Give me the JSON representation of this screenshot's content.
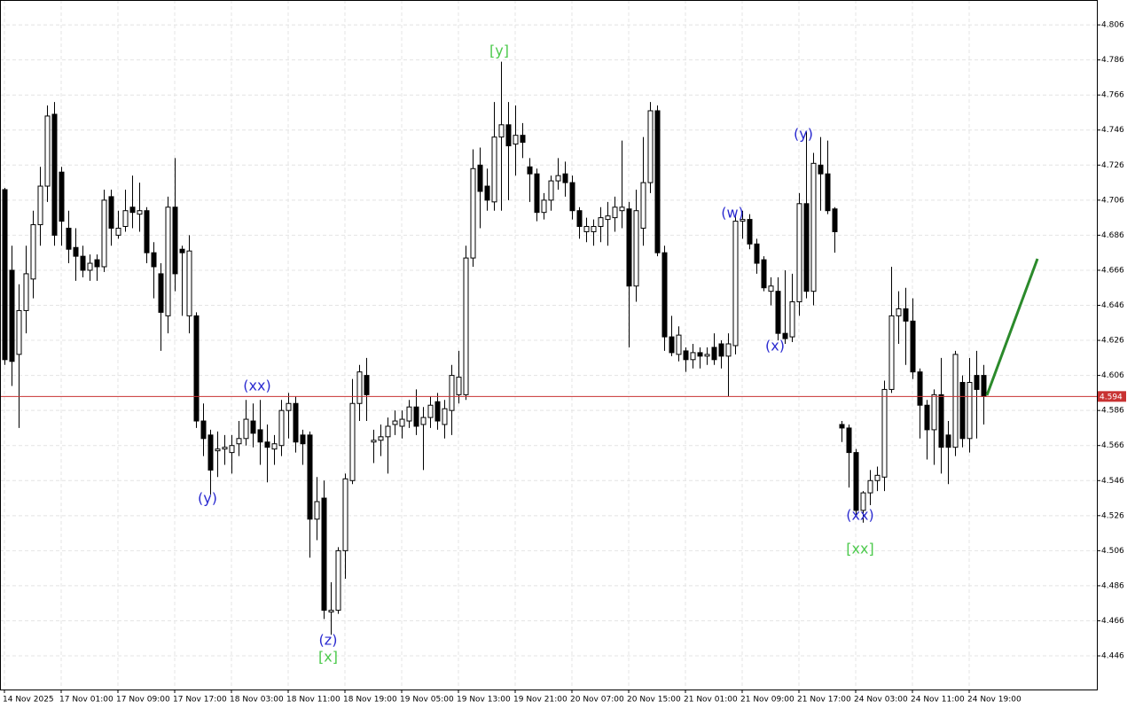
{
  "chart_data": {
    "type": "candlestick",
    "categories": [
      "14 Nov 2025",
      null,
      null,
      null,
      null,
      null,
      null,
      null,
      "17 Nov 01:00",
      null,
      null,
      null,
      null,
      null,
      null,
      null,
      "17 Nov 09:00",
      null,
      null,
      null,
      null,
      null,
      null,
      null,
      "17 Nov 17:00",
      null,
      null,
      null,
      null,
      null,
      null,
      null,
      "18 Nov 03:00",
      null,
      null,
      null,
      null,
      null,
      null,
      null,
      "18 Nov 11:00",
      null,
      null,
      null,
      null,
      null,
      null,
      null,
      "18 Nov 19:00",
      null,
      null,
      null,
      null,
      null,
      null,
      null,
      "19 Nov 05:00",
      null,
      null,
      null,
      null,
      null,
      null,
      null,
      "19 Nov 13:00",
      null,
      null,
      null,
      null,
      null,
      null,
      null,
      "19 Nov 21:00",
      null,
      null,
      null,
      null,
      null,
      null,
      null,
      "20 Nov 07:00",
      null,
      null,
      null,
      null,
      null,
      null,
      null,
      "20 Nov 15:00",
      null,
      null,
      null,
      null,
      null,
      null,
      null,
      "21 Nov 01:00",
      null,
      null,
      null,
      null,
      null,
      null,
      null,
      "21 Nov 09:00",
      null,
      null,
      null,
      null,
      null,
      null,
      null,
      "21 Nov 17:00",
      null,
      null,
      null,
      null,
      null,
      null,
      null,
      "24 Nov 03:00",
      null,
      null,
      null,
      null,
      null,
      null,
      null,
      "24 Nov 11:00",
      null,
      null,
      null,
      null,
      null,
      null,
      null,
      "24 Nov 19:00",
      null,
      null
    ],
    "open": [
      4.712,
      4.666,
      4.618,
      4.643,
      4.661,
      4.692,
      4.714,
      4.755,
      4.722,
      4.69,
      4.679,
      4.674,
      4.666,
      4.672,
      4.668,
      4.708,
      4.686,
      4.691,
      4.702,
      4.698,
      4.7,
      4.676,
      4.664,
      4.64,
      4.702,
      4.678,
      4.64,
      4.64,
      4.58,
      4.572,
      4.563,
      4.564,
      4.562,
      4.567,
      4.57,
      4.58,
      4.575,
      4.568,
      4.564,
      4.566,
      4.586,
      4.59,
      4.572,
      4.572,
      4.524,
      4.536,
      4.471,
      4.472,
      4.506,
      4.546,
      4.59,
      4.606,
      4.568,
      4.569,
      4.571,
      4.578,
      4.577,
      4.58,
      4.588,
      4.578,
      4.582,
      4.591,
      4.578,
      4.586,
      4.595,
      4.595,
      4.673,
      4.726,
      4.714,
      4.705,
      4.742,
      4.749,
      4.738,
      4.743,
      4.725,
      4.721,
      4.699,
      4.706,
      4.717,
      4.721,
      4.716,
      4.7,
      4.688,
      4.688,
      4.691,
      4.695,
      4.696,
      4.7,
      4.701,
      4.657,
      4.69,
      4.716,
      4.757,
      4.676,
      4.628,
      4.618,
      4.62,
      4.615,
      4.619,
      4.617,
      4.622,
      4.624,
      4.617,
      4.623,
      4.694,
      4.695,
      4.681,
      4.672,
      4.654,
      4.654,
      4.63,
      4.628,
      4.648,
      4.704,
      4.654,
      4.726,
      4.721,
      4.701,
      4.578,
      4.576,
      4.562,
      4.529,
      4.539,
      4.546,
      4.548,
      4.598,
      4.64,
      4.644,
      4.637,
      4.608,
      4.589,
      4.575,
      4.595,
      4.572,
      4.565,
      4.602,
      4.57,
      4.606,
      4.606
    ],
    "high": [
      4.713,
      4.68,
      4.658,
      4.68,
      4.7,
      4.725,
      4.76,
      4.762,
      4.725,
      4.7,
      4.69,
      4.68,
      4.675,
      4.675,
      4.712,
      4.712,
      4.7,
      4.712,
      4.72,
      4.716,
      4.702,
      4.682,
      4.67,
      4.708,
      4.73,
      4.68,
      4.686,
      4.642,
      4.59,
      4.575,
      4.574,
      4.572,
      4.572,
      4.58,
      4.592,
      4.59,
      4.592,
      4.578,
      4.572,
      4.592,
      4.596,
      4.594,
      4.575,
      4.574,
      4.548,
      4.546,
      4.488,
      4.508,
      4.55,
      4.604,
      4.612,
      4.616,
      4.575,
      4.578,
      4.582,
      4.586,
      4.586,
      4.592,
      4.598,
      4.588,
      4.594,
      4.596,
      4.592,
      4.612,
      4.62,
      4.68,
      4.735,
      4.736,
      4.724,
      4.762,
      4.785,
      4.762,
      4.76,
      4.75,
      4.73,
      4.724,
      4.71,
      4.72,
      4.73,
      4.728,
      4.72,
      4.702,
      4.696,
      4.695,
      4.702,
      4.705,
      4.708,
      4.74,
      4.705,
      4.712,
      4.742,
      4.762,
      4.76,
      4.68,
      4.64,
      4.634,
      4.622,
      4.624,
      4.622,
      4.622,
      4.63,
      4.626,
      4.63,
      4.698,
      4.7,
      4.698,
      4.684,
      4.674,
      4.662,
      4.662,
      4.666,
      4.664,
      4.71,
      4.745,
      4.733,
      4.742,
      4.74,
      4.702,
      4.58,
      4.578,
      4.564,
      4.54,
      4.552,
      4.554,
      4.603,
      4.668,
      4.654,
      4.656,
      4.65,
      4.61,
      4.592,
      4.598,
      4.616,
      4.58,
      4.62,
      4.606,
      4.616,
      4.62,
      4.612
    ],
    "low": [
      4.612,
      4.6,
      4.576,
      4.63,
      4.65,
      4.68,
      4.705,
      4.68,
      4.68,
      4.67,
      4.66,
      4.662,
      4.66,
      4.66,
      4.665,
      4.68,
      4.684,
      4.688,
      4.69,
      4.688,
      4.67,
      4.65,
      4.62,
      4.63,
      4.654,
      4.64,
      4.63,
      4.576,
      4.56,
      4.538,
      4.548,
      4.555,
      4.55,
      4.56,
      4.566,
      4.565,
      4.555,
      4.545,
      4.555,
      4.56,
      4.57,
      4.562,
      4.555,
      4.502,
      4.512,
      4.467,
      4.458,
      4.47,
      4.49,
      4.544,
      4.58,
      4.58,
      4.556,
      4.56,
      4.55,
      4.572,
      4.57,
      4.576,
      4.572,
      4.552,
      4.576,
      4.575,
      4.57,
      4.572,
      4.59,
      4.592,
      4.668,
      4.69,
      4.7,
      4.7,
      4.7,
      4.706,
      4.72,
      4.73,
      4.705,
      4.694,
      4.695,
      4.7,
      4.712,
      4.708,
      4.695,
      4.684,
      4.682,
      4.68,
      4.682,
      4.68,
      4.688,
      4.69,
      4.622,
      4.648,
      4.68,
      4.71,
      4.674,
      4.62,
      4.617,
      4.614,
      4.608,
      4.61,
      4.61,
      4.612,
      4.612,
      4.61,
      4.594,
      4.618,
      4.684,
      4.678,
      4.664,
      4.654,
      4.646,
      4.626,
      4.624,
      4.625,
      4.64,
      4.65,
      4.646,
      4.7,
      4.698,
      4.676,
      4.568,
      4.542,
      4.526,
      4.522,
      4.532,
      4.54,
      4.54,
      4.596,
      4.624,
      4.612,
      4.604,
      4.57,
      4.558,
      4.555,
      4.55,
      4.544,
      4.56,
      4.565,
      4.562,
      4.57,
      4.578
    ],
    "close": [
      4.615,
      4.614,
      4.643,
      4.664,
      4.692,
      4.714,
      4.754,
      4.686,
      4.694,
      4.678,
      4.674,
      4.666,
      4.67,
      4.668,
      4.706,
      4.69,
      4.69,
      4.7,
      4.699,
      4.7,
      4.676,
      4.668,
      4.642,
      4.702,
      4.664,
      4.676,
      4.677,
      4.58,
      4.57,
      4.552,
      4.564,
      4.565,
      4.566,
      4.57,
      4.581,
      4.573,
      4.568,
      4.565,
      4.567,
      4.586,
      4.59,
      4.568,
      4.567,
      4.524,
      4.534,
      4.472,
      4.472,
      4.506,
      4.547,
      4.59,
      4.608,
      4.595,
      4.569,
      4.571,
      4.577,
      4.58,
      4.581,
      4.588,
      4.577,
      4.582,
      4.589,
      4.58,
      4.587,
      4.606,
      4.605,
      4.673,
      4.724,
      4.711,
      4.706,
      4.742,
      4.749,
      4.737,
      4.743,
      4.739,
      4.721,
      4.699,
      4.706,
      4.717,
      4.72,
      4.716,
      4.7,
      4.691,
      4.691,
      4.691,
      4.696,
      4.697,
      4.702,
      4.702,
      4.657,
      4.7,
      4.716,
      4.757,
      4.676,
      4.628,
      4.619,
      4.629,
      4.615,
      4.619,
      4.617,
      4.618,
      4.615,
      4.617,
      4.624,
      4.694,
      4.695,
      4.681,
      4.67,
      4.656,
      4.657,
      4.63,
      4.627,
      4.648,
      4.704,
      4.654,
      4.727,
      4.721,
      4.7,
      4.688,
      4.576,
      4.562,
      4.529,
      4.539,
      4.546,
      4.549,
      4.598,
      4.64,
      4.644,
      4.637,
      4.608,
      4.589,
      4.575,
      4.595,
      4.565,
      4.565,
      4.618,
      4.57,
      4.602,
      4.598,
      4.594
    ],
    "ylim": [
      4.4268,
      4.8202
    ],
    "yticks": [
      4.446,
      4.466,
      4.486,
      4.506,
      4.526,
      4.546,
      4.566,
      4.586,
      4.606,
      4.626,
      4.646,
      4.666,
      4.686,
      4.706,
      4.726,
      4.746,
      4.766,
      4.786,
      4.806
    ],
    "grid": true,
    "last_price": 4.594,
    "last_price_color": "#c83232",
    "annotations": [
      {
        "text": "[y]",
        "color": "#4cc94c"
      },
      {
        "text": "(xx)",
        "color": "#2a2ad0"
      },
      {
        "text": "(y)",
        "color": "#2a2ad0"
      },
      {
        "text": "(z)",
        "color": "#2a2ad0"
      },
      {
        "text": "[x]",
        "color": "#4cc94c"
      },
      {
        "text": "(w)",
        "color": "#2a2ad0"
      },
      {
        "text": "(x)",
        "color": "#2a2ad0"
      },
      {
        "text": "(y)",
        "color": "#2a2ad0"
      },
      {
        "text": "(xx)",
        "color": "#2a2ad0"
      },
      {
        "text": "[xx]",
        "color": "#4cc94c"
      }
    ]
  }
}
